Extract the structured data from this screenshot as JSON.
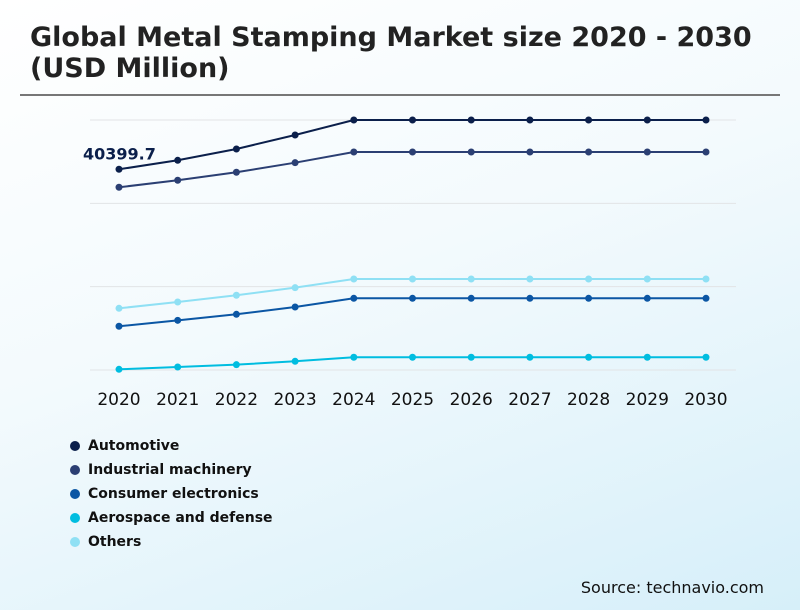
{
  "chart_data": {
    "type": "line",
    "title": "Global Metal Stamping Market size 2020 - 2030 (USD Million)",
    "xlabel": "",
    "ylabel": "",
    "x": [
      "2020",
      "2021",
      "2022",
      "2023",
      "2024",
      "2025",
      "2026",
      "2027",
      "2028",
      "2029",
      "2030"
    ],
    "ylim": [
      0,
      50320
    ],
    "grid": true,
    "legend_position": "bottom-left",
    "series": [
      {
        "name": "Automotive",
        "color": "#0b1f4b",
        "values": [
          40399.7,
          42210,
          44490,
          47300,
          50320,
          50320,
          50320,
          50320,
          50320,
          50320,
          50320
        ]
      },
      {
        "name": "Industrial machinery",
        "color": "#2b3f73",
        "values": [
          36780,
          38190,
          39800,
          41730,
          43880,
          43880,
          43880,
          43880,
          43880,
          43880,
          43880
        ]
      },
      {
        "name": "Consumer electronics",
        "color": "#0b56a4",
        "values": [
          8800,
          10000,
          11210,
          12680,
          14430,
          14430,
          14430,
          14430,
          14430,
          14430,
          14430
        ]
      },
      {
        "name": "Aerospace and defense",
        "color": "#00bde0",
        "values": [
          140,
          600,
          1070,
          1750,
          2560,
          2560,
          2560,
          2560,
          2560,
          2560,
          2560
        ]
      },
      {
        "name": "Others",
        "color": "#8fe0f4",
        "values": [
          12420,
          13690,
          15040,
          16570,
          18320,
          18320,
          18320,
          18320,
          18320,
          18320,
          18320
        ]
      }
    ],
    "annotations": [
      {
        "series": "Automotive",
        "x": "2020",
        "text": "40399.7"
      }
    ]
  },
  "source": "Source: technavio.com"
}
